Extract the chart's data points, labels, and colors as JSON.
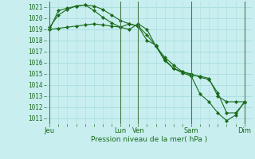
{
  "xlabel": "Pression niveau de la mer( hPa )",
  "bg_color": "#c8eef0",
  "grid_color": "#aadddd",
  "line_color": "#1a6b1a",
  "ylim": [
    1010.5,
    1021.5
  ],
  "yticks": [
    1011,
    1012,
    1013,
    1014,
    1015,
    1016,
    1017,
    1018,
    1019,
    1020,
    1021
  ],
  "day_labels": [
    "Jeu",
    "Lun",
    "Ven",
    "Sam",
    "Dim"
  ],
  "day_x": [
    0,
    96,
    120,
    192,
    264
  ],
  "xlim": [
    -5,
    275
  ],
  "series1_x": [
    0,
    12,
    24,
    36,
    48,
    60,
    72,
    84,
    96,
    108,
    120,
    132,
    144,
    156,
    168,
    180,
    192,
    204,
    216,
    228,
    240,
    252,
    264
  ],
  "series1_y": [
    1019.0,
    1019.1,
    1019.2,
    1019.3,
    1019.4,
    1019.5,
    1019.4,
    1019.3,
    1019.2,
    1019.0,
    1019.5,
    1019.0,
    1017.5,
    1016.2,
    1015.5,
    1015.2,
    1014.9,
    1014.8,
    1014.6,
    1013.0,
    1012.5,
    1012.5,
    1012.5
  ],
  "series2_x": [
    0,
    12,
    24,
    36,
    48,
    60,
    72,
    84,
    96,
    108,
    120,
    132,
    144,
    156,
    168,
    180,
    192,
    204,
    216,
    228,
    240,
    252,
    264
  ],
  "series2_y": [
    1019.2,
    1020.3,
    1020.8,
    1021.1,
    1021.2,
    1021.1,
    1020.8,
    1020.3,
    1019.8,
    1019.5,
    1019.3,
    1018.5,
    1017.5,
    1016.5,
    1015.8,
    1015.2,
    1015.0,
    1014.7,
    1014.5,
    1013.3,
    1011.5,
    1011.5,
    1012.4
  ],
  "series3_x": [
    0,
    12,
    24,
    36,
    48,
    60,
    72,
    84,
    96,
    108,
    120,
    132,
    144,
    156,
    168,
    180,
    192,
    204,
    216,
    228,
    240,
    252,
    264
  ],
  "series3_y": [
    1019.0,
    1020.7,
    1020.9,
    1021.1,
    1021.2,
    1020.7,
    1020.1,
    1019.6,
    1019.2,
    1019.5,
    1019.3,
    1018.0,
    1017.6,
    1016.3,
    1015.5,
    1015.1,
    1014.8,
    1013.2,
    1012.5,
    1011.5,
    1010.8,
    1011.3,
    1012.5
  ],
  "vline_x": [
    0,
    96,
    120,
    192,
    264
  ]
}
